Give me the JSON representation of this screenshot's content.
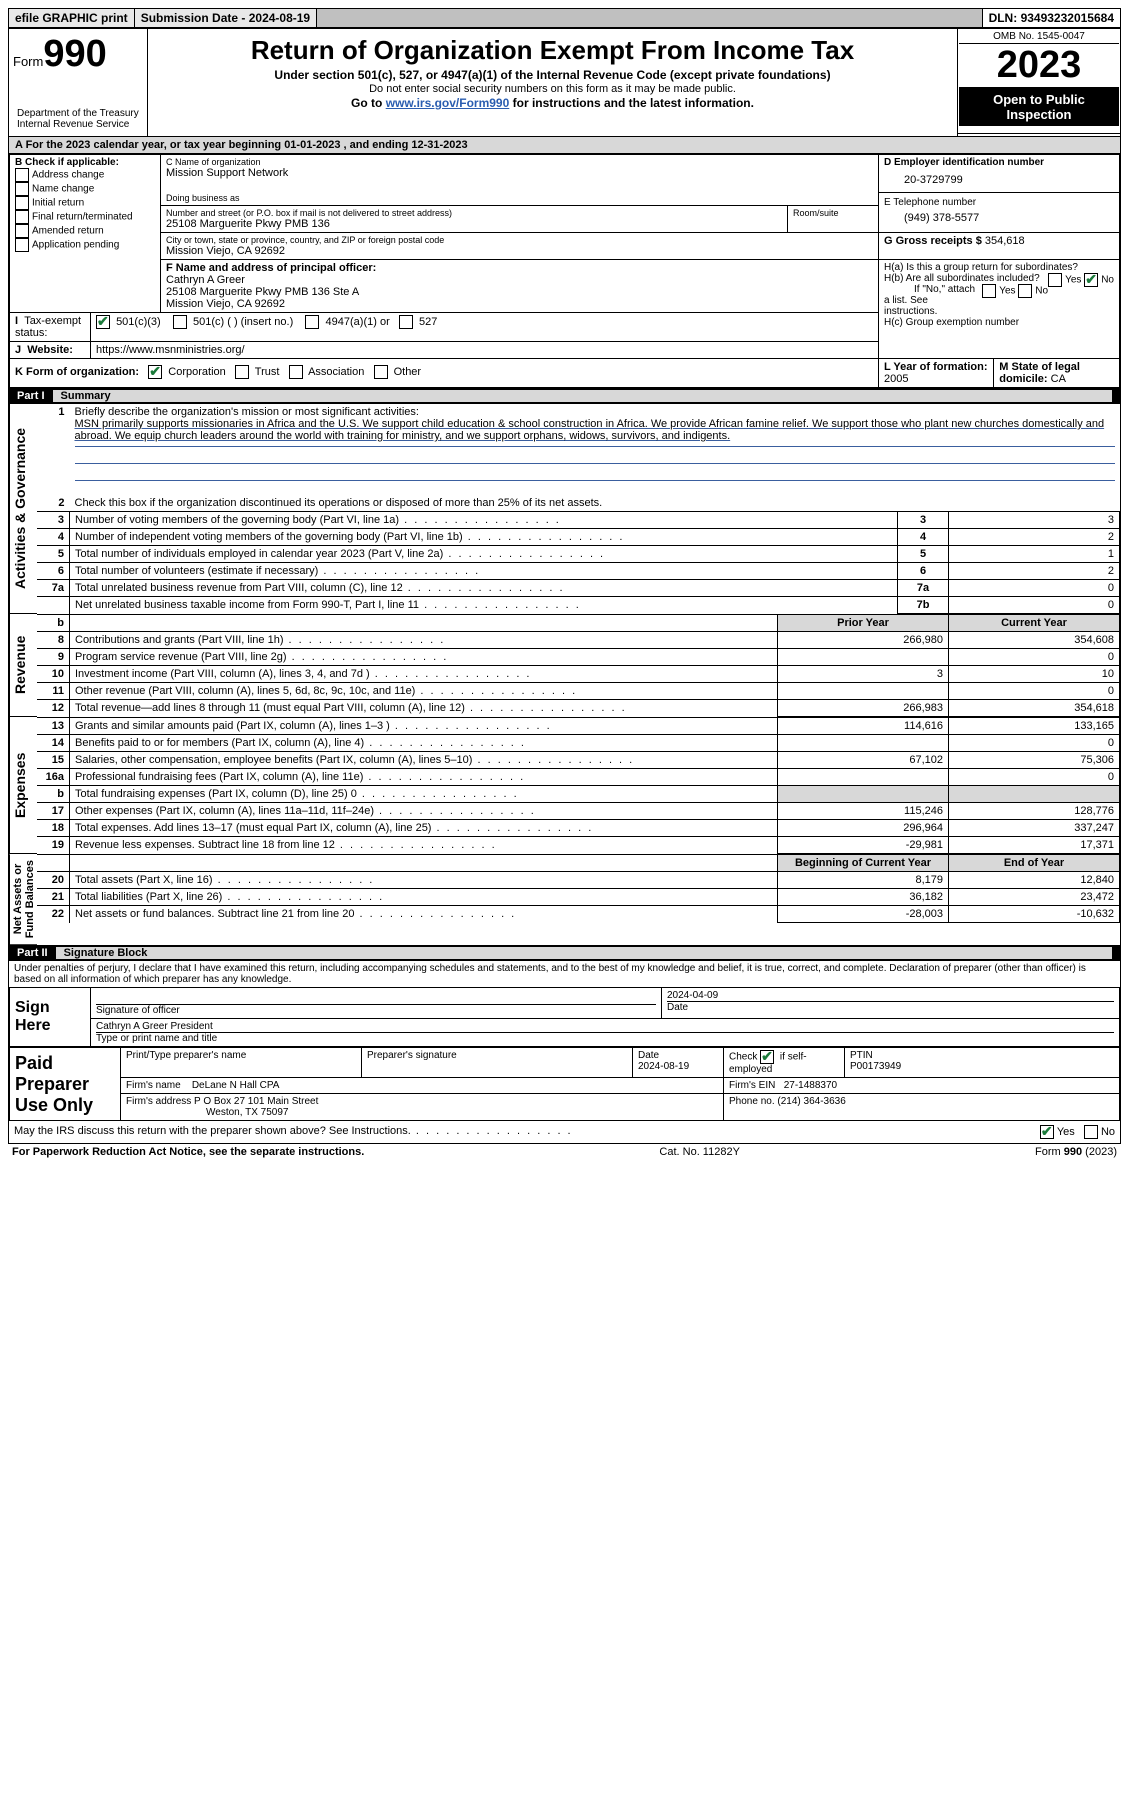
{
  "topbar": {
    "efile": "efile GRAPHIC print",
    "sub_label": "Submission Date - ",
    "sub_date": "2024-08-19",
    "dln_label": "DLN: ",
    "dln": "93493232015684"
  },
  "header": {
    "form_word": "Form",
    "form_num": "990",
    "title": "Return of Organization Exempt From Income Tax",
    "sub1": "Under section 501(c), 527, or 4947(a)(1) of the Internal Revenue Code (except private foundations)",
    "sub2": "Do not enter social security numbers on this form as it may be made public.",
    "sub3_pre": "Go to ",
    "sub3_link": "www.irs.gov/Form990",
    "sub3_post": " for instructions and the latest information.",
    "omb": "OMB No. 1545-0047",
    "year": "2023",
    "open": "Open to Public Inspection",
    "dept1": "Department of the Treasury",
    "dept2": "Internal Revenue Service"
  },
  "secA": {
    "text": "A For the 2023 calendar year, or tax year beginning 01-01-2023   , and ending 12-31-2023"
  },
  "boxB": {
    "hdr": "B Check if applicable:",
    "opts": [
      "Address change",
      "Name change",
      "Initial return",
      "Final return/terminated",
      "Amended return",
      "Application pending"
    ]
  },
  "boxC": {
    "name_lbl": "C Name of organization",
    "name": "Mission Support Network",
    "dba_lbl": "Doing business as",
    "addr_lbl": "Number and street (or P.O. box if mail is not delivered to street address)",
    "room_lbl": "Room/suite",
    "addr": "25108 Marguerite Pkwy PMB 136",
    "city_lbl": "City or town, state or province, country, and ZIP or foreign postal code",
    "city": "Mission Viejo, CA  92692"
  },
  "boxD": {
    "lbl": "D Employer identification number",
    "val": "20-3729799"
  },
  "boxE": {
    "lbl": "E Telephone number",
    "val": "(949) 378-5577"
  },
  "boxG": {
    "lbl": "G Gross receipts $ ",
    "val": "354,618"
  },
  "boxF": {
    "lbl": "F Name and address of principal officer:",
    "name": "Cathryn A Greer",
    "addr1": "25108 Marguerite Pkwy PMB 136 Ste A",
    "addr2": "Mission Viejo, CA  92692"
  },
  "boxH": {
    "a_lbl": "H(a)  Is this a group return for subordinates?",
    "b_lbl": "H(b)  Are all subordinates included?",
    "b_note": "If \"No,\" attach a list. See instructions.",
    "c_lbl": "H(c)  Group exemption number "
  },
  "boxI": {
    "lbl": "Tax-exempt status:",
    "o1": "501(c)(3)",
    "o2": "501(c) (  ) (insert no.)",
    "o3": "4947(a)(1) or",
    "o4": "527"
  },
  "boxJ": {
    "lbl": "Website: ",
    "val": "https://www.msnministries.org/"
  },
  "boxK": {
    "lbl": "K Form of organization:",
    "o1": "Corporation",
    "o2": "Trust",
    "o3": "Association",
    "o4": "Other"
  },
  "boxL": {
    "lbl": "L Year of formation: ",
    "val": "2005"
  },
  "boxM": {
    "lbl": "M State of legal domicile: ",
    "val": "CA"
  },
  "part1": {
    "title": "Part I",
    "sub": "Summary"
  },
  "gov": {
    "q1": "Briefly describe the organization's mission or most significant activities:",
    "mission": "MSN primarily supports missionaries in Africa and the U.S. We support child education & school construction in Africa. We provide African famine relief. We support those who plant new churches domestically and abroad. We equip church leaders around the world with training for ministry, and we support orphans, widows, survivors, and indigents.",
    "q2": "Check this box        if the organization discontinued its operations or disposed of more than 25% of its net assets.",
    "rows": [
      {
        "n": "3",
        "t": "Number of voting members of the governing body (Part VI, line 1a)",
        "b": "3",
        "v": "3"
      },
      {
        "n": "4",
        "t": "Number of independent voting members of the governing body (Part VI, line 1b)",
        "b": "4",
        "v": "2"
      },
      {
        "n": "5",
        "t": "Total number of individuals employed in calendar year 2023 (Part V, line 2a)",
        "b": "5",
        "v": "1"
      },
      {
        "n": "6",
        "t": "Total number of volunteers (estimate if necessary)",
        "b": "6",
        "v": "2"
      },
      {
        "n": "7a",
        "t": "Total unrelated business revenue from Part VIII, column (C), line 12",
        "b": "7a",
        "v": "0"
      },
      {
        "n": "",
        "t": "Net unrelated business taxable income from Form 990-T, Part I, line 11",
        "b": "7b",
        "v": "0"
      }
    ]
  },
  "rev": {
    "hdr_b": "b",
    "col_prior": "Prior Year",
    "col_curr": "Current Year",
    "rows": [
      {
        "n": "8",
        "t": "Contributions and grants (Part VIII, line 1h)",
        "p": "266,980",
        "c": "354,608"
      },
      {
        "n": "9",
        "t": "Program service revenue (Part VIII, line 2g)",
        "p": "",
        "c": "0"
      },
      {
        "n": "10",
        "t": "Investment income (Part VIII, column (A), lines 3, 4, and 7d )",
        "p": "3",
        "c": "10"
      },
      {
        "n": "11",
        "t": "Other revenue (Part VIII, column (A), lines 5, 6d, 8c, 9c, 10c, and 11e)",
        "p": "",
        "c": "0"
      },
      {
        "n": "12",
        "t": "Total revenue—add lines 8 through 11 (must equal Part VIII, column (A), line 12)",
        "p": "266,983",
        "c": "354,618"
      }
    ]
  },
  "exp": {
    "rows": [
      {
        "n": "13",
        "t": "Grants and similar amounts paid (Part IX, column (A), lines 1–3 )",
        "p": "114,616",
        "c": "133,165"
      },
      {
        "n": "14",
        "t": "Benefits paid to or for members (Part IX, column (A), line 4)",
        "p": "",
        "c": "0"
      },
      {
        "n": "15",
        "t": "Salaries, other compensation, employee benefits (Part IX, column (A), lines 5–10)",
        "p": "67,102",
        "c": "75,306"
      },
      {
        "n": "16a",
        "t": "Professional fundraising fees (Part IX, column (A), line 11e)",
        "p": "",
        "c": "0"
      },
      {
        "n": "b",
        "t": "Total fundraising expenses (Part IX, column (D), line 25) 0",
        "p": "@shade",
        "c": "@shade"
      },
      {
        "n": "17",
        "t": "Other expenses (Part IX, column (A), lines 11a–11d, 11f–24e)",
        "p": "115,246",
        "c": "128,776"
      },
      {
        "n": "18",
        "t": "Total expenses. Add lines 13–17 (must equal Part IX, column (A), line 25)",
        "p": "296,964",
        "c": "337,247"
      },
      {
        "n": "19",
        "t": "Revenue less expenses. Subtract line 18 from line 12",
        "p": "-29,981",
        "c": "17,371"
      }
    ]
  },
  "net": {
    "col_beg": "Beginning of Current Year",
    "col_end": "End of Year",
    "rows": [
      {
        "n": "20",
        "t": "Total assets (Part X, line 16)",
        "p": "8,179",
        "c": "12,840"
      },
      {
        "n": "21",
        "t": "Total liabilities (Part X, line 26)",
        "p": "36,182",
        "c": "23,472"
      },
      {
        "n": "22",
        "t": "Net assets or fund balances. Subtract line 21 from line 20",
        "p": "-28,003",
        "c": "-10,632"
      }
    ]
  },
  "part2": {
    "title": "Part II",
    "sub": "Signature Block"
  },
  "perjury": "Under penalties of perjury, I declare that I have examined this return, including accompanying schedules and statements, and to the best of my knowledge and belief, it is true, correct, and complete. Declaration of preparer (other than officer) is based on all information of which preparer has any knowledge.",
  "sign": {
    "here": "Sign Here",
    "sig_lbl": "Signature of officer",
    "date_lbl": "Date",
    "date": "2024-04-09",
    "name_line": "Cathryn A Greer  President",
    "type_lbl": "Type or print name and title"
  },
  "paid": {
    "title1": "Paid",
    "title2": "Preparer",
    "title3": "Use Only",
    "h1": "Print/Type preparer's name",
    "h2": "Preparer's signature",
    "h3": "Date",
    "h3v": "2024-08-19",
    "h4a": "Check",
    "h4b": "if self-employed",
    "h5": "PTIN",
    "ptin": "P00173949",
    "firm_lbl": "Firm's name",
    "firm": "DeLane N Hall CPA",
    "ein_lbl": "Firm's EIN",
    "ein": "27-1488370",
    "addr_lbl": "Firm's address",
    "addr1": "P O Box 27 101 Main Street",
    "addr2": "Weston, TX  75097",
    "phone_lbl": "Phone no.",
    "phone": "(214) 364-3636"
  },
  "discuss": "May the IRS discuss this return with the preparer shown above? See Instructions.",
  "footer": {
    "l": "For Paperwork Reduction Act Notice, see the separate instructions.",
    "c": "Cat. No. 11282Y",
    "r": "Form 990 (2023)"
  },
  "yesno": {
    "y": "Yes",
    "n": "No"
  }
}
